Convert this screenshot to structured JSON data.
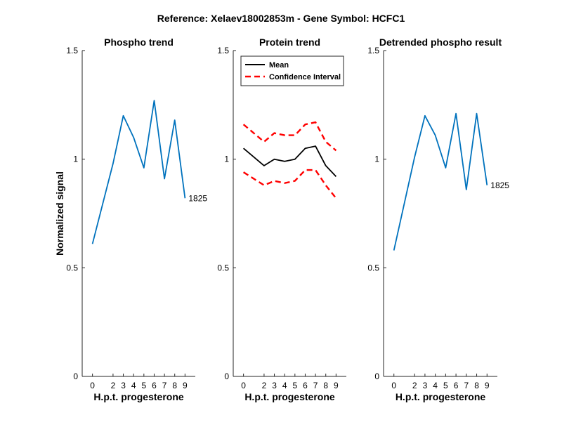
{
  "figure": {
    "suptitle": "Reference:  Xelaev18002853m - Gene Symbol:  HCFC1",
    "ylabel": "Normalized signal"
  },
  "chart_data": [
    {
      "type": "line",
      "title": "Phospho trend",
      "xlabel": "H.p.t. progesterone",
      "ylabel": "Normalized signal",
      "x": [
        0,
        2,
        3,
        4,
        5,
        6,
        7,
        8,
        9
      ],
      "xlim": [
        -1,
        10
      ],
      "ylim": [
        0,
        1.5
      ],
      "yticks": [
        0,
        0.5,
        1,
        1.5
      ],
      "ytick_labels": [
        "0",
        "0.5",
        "1",
        "1.5"
      ],
      "grid": false,
      "series": [
        {
          "values": [
            0.61,
            0.98,
            1.2,
            1.1,
            0.96,
            1.27,
            0.91,
            1.18,
            0.82
          ],
          "color": "#0072BD",
          "dash": "solid",
          "end_label": "1825"
        }
      ]
    },
    {
      "type": "line",
      "title": "Protein trend",
      "xlabel": "H.p.t. progesterone",
      "x": [
        0,
        2,
        3,
        4,
        5,
        6,
        7,
        8,
        9
      ],
      "xlim": [
        -1,
        10
      ],
      "ylim": [
        0,
        1.5
      ],
      "yticks": [
        0,
        0.5,
        1,
        1.5
      ],
      "ytick_labels": [
        "0",
        "0.5",
        "1",
        "1.5"
      ],
      "grid": false,
      "legend_position": "top-right",
      "series": [
        {
          "name": "Mean",
          "values": [
            1.05,
            0.97,
            1.0,
            0.99,
            1.0,
            1.05,
            1.06,
            0.97,
            0.92
          ],
          "color": "#000000",
          "dash": "solid",
          "in_legend": true
        },
        {
          "name": "Confidence Interval",
          "values": [
            1.16,
            1.08,
            1.12,
            1.11,
            1.11,
            1.16,
            1.17,
            1.08,
            1.04
          ],
          "color": "#FF0000",
          "dash": "dashed",
          "in_legend": true
        },
        {
          "name": "Confidence Interval",
          "values": [
            0.94,
            0.88,
            0.9,
            0.89,
            0.9,
            0.95,
            0.95,
            0.88,
            0.82
          ],
          "color": "#FF0000",
          "dash": "dashed",
          "in_legend": false
        }
      ]
    },
    {
      "type": "line",
      "title": "Detrended phospho result",
      "xlabel": "H.p.t. progesterone",
      "x": [
        0,
        2,
        3,
        4,
        5,
        6,
        7,
        8,
        9
      ],
      "xlim": [
        -1,
        10
      ],
      "ylim": [
        0,
        1.5
      ],
      "yticks": [
        0,
        0.5,
        1,
        1.5
      ],
      "ytick_labels": [
        "0",
        "0.5",
        "1",
        "1.5"
      ],
      "grid": false,
      "series": [
        {
          "values": [
            0.58,
            1.01,
            1.2,
            1.11,
            0.96,
            1.21,
            0.86,
            1.21,
            0.88
          ],
          "color": "#0072BD",
          "dash": "solid",
          "end_label": "1825"
        }
      ]
    }
  ]
}
